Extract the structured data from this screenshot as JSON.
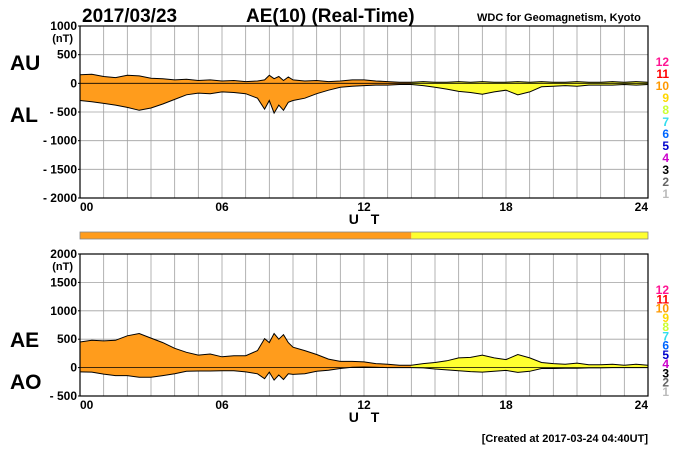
{
  "header": {
    "date": "2017/03/23",
    "index_title": "AE(10) (Real-Time)",
    "source": "WDC for Geomagnetism, Kyoto"
  },
  "footer": {
    "created": "[Created at 2017-03-24 04:40UT]"
  },
  "station_key": {
    "labels": [
      "12",
      "11",
      "10",
      "9",
      "8",
      "7",
      "6",
      "5",
      "4",
      "3",
      "2",
      "1"
    ],
    "colors": [
      "#ff1493",
      "#ff0000",
      "#ff9900",
      "#ffd700",
      "#ccff33",
      "#33ddee",
      "#0066ff",
      "#0000cc",
      "#cc00cc",
      "#000000",
      "#666666",
      "#bbbbbb"
    ]
  },
  "colors": {
    "orange_fill": "#ff9c1c",
    "yellow_fill": "#ffff30",
    "grid": "#a0a0a0"
  },
  "chart_data": [
    {
      "type": "area",
      "panel": "AU/AL",
      "series_labels": [
        "AU",
        "AL"
      ],
      "ylabel_unit": "(nT)",
      "ytick_labels": [
        "1000",
        "500",
        "0",
        "- 500",
        "- 1000",
        "- 1500",
        "- 2000"
      ],
      "yticks": [
        1000,
        500,
        0,
        -500,
        -1000,
        -1500,
        -2000
      ],
      "ylim": [
        -2000,
        1000
      ],
      "xlim": [
        0,
        24
      ],
      "xtick_labels": [
        "00",
        "06",
        "12",
        "18",
        "24"
      ],
      "xticks": [
        0,
        6,
        12,
        18,
        24
      ],
      "xlabel": "U T",
      "grid": true,
      "fill_change_hour": 14,
      "x": [
        0,
        0.5,
        1,
        1.5,
        2,
        2.5,
        3,
        3.5,
        4,
        4.5,
        5,
        5.5,
        6,
        6.5,
        7,
        7.5,
        7.8,
        8,
        8.2,
        8.4,
        8.6,
        8.8,
        9,
        9.5,
        10,
        10.5,
        11,
        11.5,
        12,
        12.5,
        13,
        13.5,
        14,
        14.5,
        15,
        15.5,
        16,
        16.5,
        17,
        17.5,
        18,
        18.5,
        19,
        19.5,
        20,
        20.5,
        21,
        21.5,
        22,
        22.5,
        23,
        23.5,
        24
      ],
      "series": [
        {
          "name": "AU",
          "values": [
            150,
            160,
            120,
            100,
            140,
            130,
            90,
            80,
            60,
            70,
            50,
            60,
            40,
            50,
            30,
            40,
            60,
            140,
            80,
            120,
            50,
            110,
            60,
            40,
            50,
            30,
            40,
            60,
            60,
            40,
            30,
            20,
            20,
            30,
            20,
            20,
            30,
            20,
            30,
            20,
            20,
            30,
            20,
            30,
            20,
            20,
            30,
            20,
            20,
            30,
            20,
            30,
            20
          ]
        },
        {
          "name": "AL",
          "values": [
            -300,
            -320,
            -350,
            -380,
            -420,
            -470,
            -430,
            -360,
            -280,
            -200,
            -170,
            -180,
            -150,
            -160,
            -180,
            -260,
            -450,
            -300,
            -520,
            -380,
            -470,
            -330,
            -300,
            -260,
            -180,
            -120,
            -70,
            -50,
            -40,
            -30,
            -30,
            -20,
            -20,
            -40,
            -70,
            -100,
            -140,
            -160,
            -190,
            -150,
            -120,
            -200,
            -150,
            -60,
            -50,
            -40,
            -50,
            -30,
            -30,
            -30,
            -20,
            -30,
            -20
          ]
        }
      ]
    },
    {
      "type": "area",
      "panel": "AE/AO",
      "series_labels": [
        "AE",
        "AO"
      ],
      "ylabel_unit": "(nT)",
      "ytick_labels": [
        "2000",
        "1500",
        "1000",
        "500",
        "0",
        "- 500"
      ],
      "yticks": [
        2000,
        1500,
        1000,
        500,
        0,
        -500
      ],
      "ylim": [
        -500,
        2000
      ],
      "xlim": [
        0,
        24
      ],
      "xtick_labels": [
        "00",
        "06",
        "12",
        "18",
        "24"
      ],
      "xticks": [
        0,
        6,
        12,
        18,
        24
      ],
      "xlabel": "U T",
      "grid": true,
      "fill_change_hour": 14,
      "x": [
        0,
        0.5,
        1,
        1.5,
        2,
        2.5,
        3,
        3.5,
        4,
        4.5,
        5,
        5.5,
        6,
        6.5,
        7,
        7.5,
        7.8,
        8,
        8.2,
        8.4,
        8.6,
        8.8,
        9,
        9.5,
        10,
        10.5,
        11,
        11.5,
        12,
        12.5,
        13,
        13.5,
        14,
        14.5,
        15,
        15.5,
        16,
        16.5,
        17,
        17.5,
        18,
        18.5,
        19,
        19.5,
        20,
        20.5,
        21,
        21.5,
        22,
        22.5,
        23,
        23.5,
        24
      ],
      "series": [
        {
          "name": "AE",
          "values": [
            450,
            480,
            470,
            480,
            560,
            600,
            520,
            440,
            340,
            270,
            220,
            240,
            190,
            210,
            210,
            300,
            510,
            440,
            600,
            500,
            580,
            440,
            360,
            300,
            230,
            150,
            110,
            110,
            100,
            70,
            60,
            40,
            40,
            70,
            90,
            120,
            170,
            180,
            220,
            170,
            140,
            230,
            170,
            90,
            70,
            60,
            80,
            50,
            50,
            60,
            40,
            60,
            40
          ]
        },
        {
          "name": "AO",
          "values": [
            -75,
            -80,
            -115,
            -140,
            -140,
            -170,
            -170,
            -140,
            -110,
            -65,
            -60,
            -60,
            -55,
            -55,
            -75,
            -110,
            -195,
            -80,
            -220,
            -130,
            -210,
            -110,
            -120,
            -110,
            -65,
            -45,
            -15,
            5,
            10,
            5,
            0,
            0,
            0,
            -5,
            -25,
            -40,
            -55,
            -70,
            -80,
            -65,
            -50,
            -85,
            -65,
            -15,
            -15,
            -10,
            -10,
            -5,
            -5,
            0,
            0,
            0,
            0
          ]
        }
      ]
    }
  ]
}
